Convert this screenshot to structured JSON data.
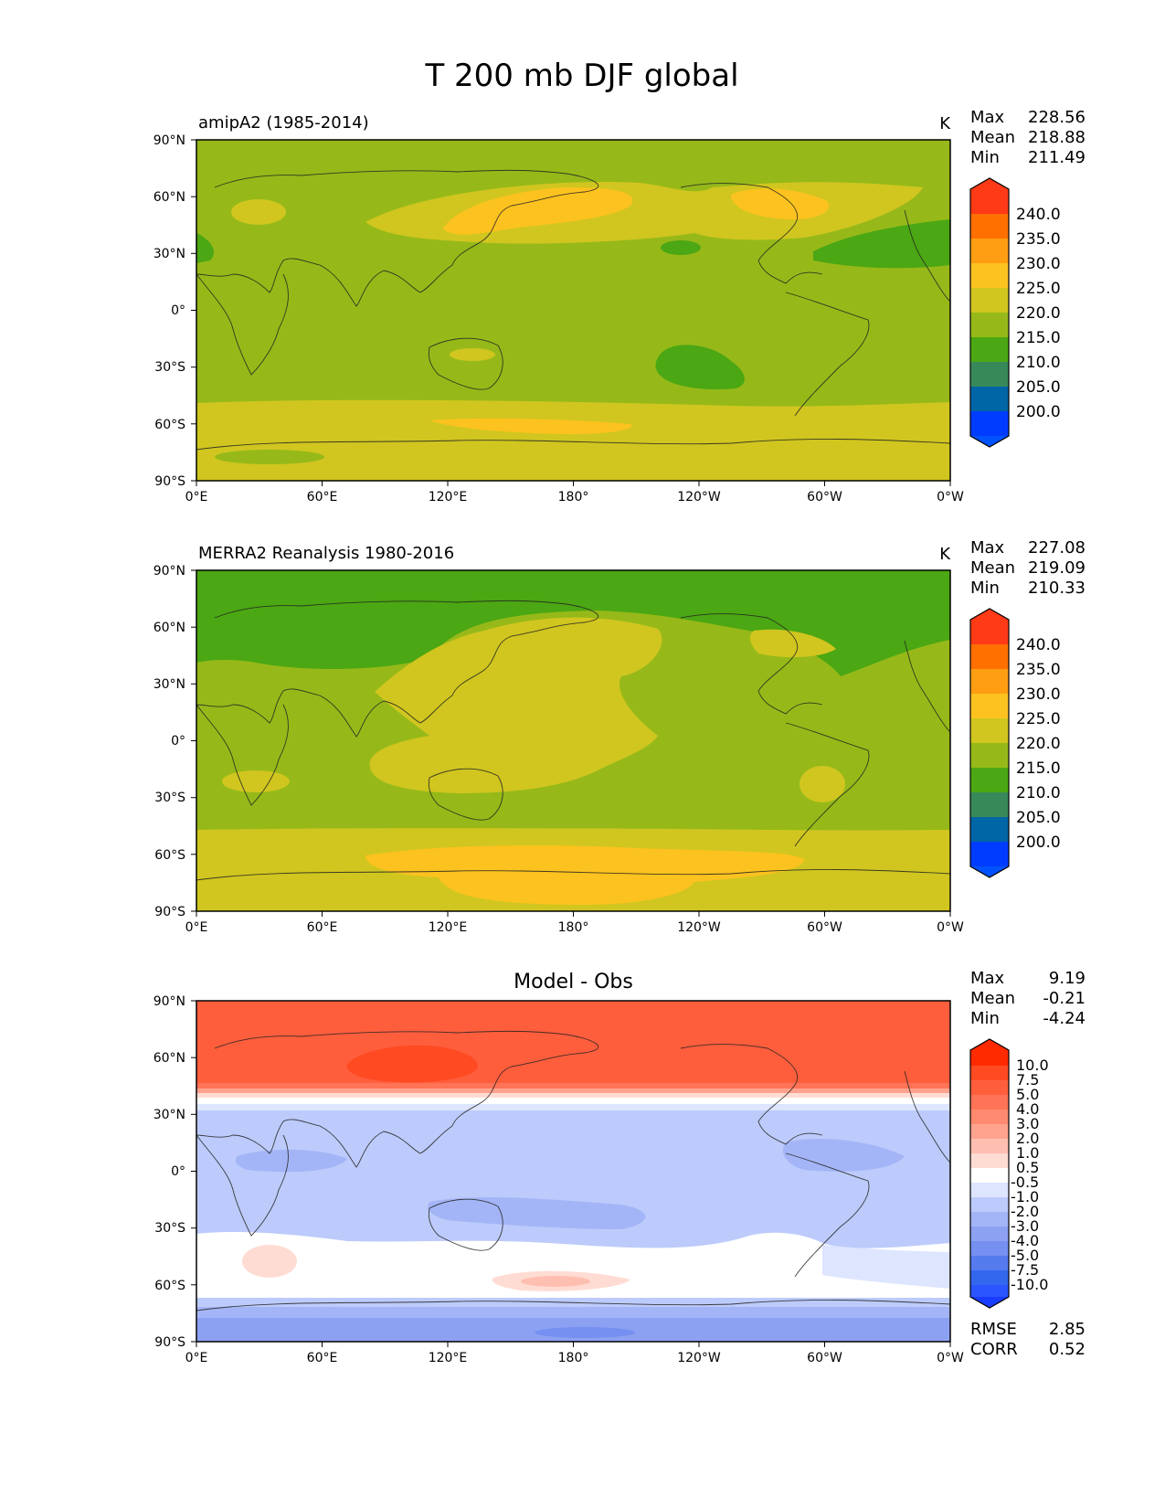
{
  "figure_title": "T 200 mb DJF global",
  "x_ticks": [
    "0°E",
    "60°E",
    "120°E",
    "180°",
    "120°W",
    "60°W",
    "0°W"
  ],
  "y_ticks": [
    "90°N",
    "60°N",
    "30°N",
    "0°",
    "30°S",
    "60°S",
    "90°S"
  ],
  "chart_data": [
    {
      "type": "heatmap",
      "name": "model",
      "title_left": "amipA2 (1985-2014)",
      "units": "K",
      "stats": [
        {
          "label": "Max",
          "value": "228.56"
        },
        {
          "label": "Mean",
          "value": "218.88"
        },
        {
          "label": "Min",
          "value": "211.49"
        }
      ],
      "colorbar": {
        "levels": [
          "240.0",
          "235.0",
          "230.0",
          "225.0",
          "220.0",
          "215.0",
          "210.0",
          "205.0",
          "200.0"
        ],
        "colors": [
          "#ff3a17",
          "#ff7000",
          "#ff9e12",
          "#fcc21f",
          "#d0c61f",
          "#96b919",
          "#4ba713",
          "#38895a",
          "#0066a5",
          "#003cff",
          "#0052ff"
        ]
      },
      "background_color": "#96b919",
      "regions": [
        {
          "band": "north subtropical warm",
          "value": "220-225",
          "color": "#d0c61f"
        },
        {
          "band": "north pacific jet",
          "value": "225-230",
          "color": "#fcc21f"
        },
        {
          "band": "north atlantic cool",
          "value": "210-215",
          "color": "#4ba713"
        },
        {
          "band": "south pacific cool",
          "value": "210-215",
          "color": "#4ba713"
        },
        {
          "band": "southern ocean warm",
          "value": "220-225",
          "color": "#d0c61f"
        },
        {
          "band": "southern ocean core",
          "value": "225-230",
          "color": "#fcc21f"
        },
        {
          "band": "antarctic cool",
          "value": "215-220",
          "color": "#96b919"
        }
      ],
      "xlim": [
        "0°E",
        "0°W"
      ],
      "ylim": [
        "90°S",
        "90°N"
      ]
    },
    {
      "type": "heatmap",
      "name": "obs",
      "title_left": "MERRA2 Reanalysis 1980-2016",
      "units": "K",
      "stats": [
        {
          "label": "Max",
          "value": "227.08"
        },
        {
          "label": "Mean",
          "value": "219.09"
        },
        {
          "label": "Min",
          "value": "210.33"
        }
      ],
      "colorbar": {
        "levels": [
          "240.0",
          "235.0",
          "230.0",
          "225.0",
          "220.0",
          "215.0",
          "210.0",
          "205.0",
          "200.0"
        ],
        "colors": [
          "#ff3a17",
          "#ff7000",
          "#ff9e12",
          "#fcc21f",
          "#d0c61f",
          "#96b919",
          "#4ba713",
          "#38895a",
          "#0066a5",
          "#003cff",
          "#0052ff"
        ]
      },
      "background_color": "#96b919",
      "regions": [
        {
          "band": "arctic cool",
          "value": "210-215",
          "color": "#4ba713"
        },
        {
          "band": "tropical pacific warm",
          "value": "220-225",
          "color": "#d0c61f"
        },
        {
          "band": "southern ocean warm",
          "value": "220-225",
          "color": "#d0c61f"
        },
        {
          "band": "southern ocean core",
          "value": "225-230",
          "color": "#fcc21f"
        }
      ],
      "xlim": [
        "0°E",
        "0°W"
      ],
      "ylim": [
        "90°S",
        "90°N"
      ]
    },
    {
      "type": "heatmap",
      "name": "difference",
      "title_center": "Model - Obs",
      "stats": [
        {
          "label": "Max",
          "value": "9.19"
        },
        {
          "label": "Mean",
          "value": "-0.21"
        },
        {
          "label": "Min",
          "value": "-4.24"
        }
      ],
      "metrics": [
        {
          "label": "RMSE",
          "value": "2.85"
        },
        {
          "label": "CORR",
          "value": "0.52"
        }
      ],
      "colorbar": {
        "levels": [
          "10.0",
          "7.5",
          "5.0",
          "4.0",
          "3.0",
          "2.0",
          "1.0",
          "0.5",
          "-0.5",
          "-1.0",
          "-2.0",
          "-3.0",
          "-4.0",
          "-5.0",
          "-7.5",
          "-10.0"
        ],
        "colors": [
          "#ff2a00",
          "#ff4a22",
          "#ff5e3d",
          "#ff7356",
          "#ff8a70",
          "#ffa38f",
          "#ffbfb0",
          "#ffdcd3",
          "#ffffff",
          "#dde5ff",
          "#bccbfb",
          "#a4b5f7",
          "#8da1f3",
          "#7590f0",
          "#567bef",
          "#3368ee",
          "#2a55ff",
          "#1a3cff"
        ]
      },
      "background_color": "#bccbfb",
      "regions": [
        {
          "band": "northern high latitudes",
          "value": "4.0 to 7.5",
          "color": "#ff5e3d"
        },
        {
          "band": "siberian max",
          "value": "7.5 to 10.0",
          "color": "#ff4a22"
        },
        {
          "band": "tropics",
          "value": "-2.0 to -1.0",
          "color": "#bccbfb"
        },
        {
          "band": "southern midlatitudes",
          "value": "-0.5 to 0.5",
          "color": "#ffffff"
        },
        {
          "band": "antarctic",
          "value": "-4.0 to -3.0",
          "color": "#8da1f3"
        }
      ],
      "xlim": [
        "0°E",
        "0°W"
      ],
      "ylim": [
        "90°S",
        "90°N"
      ]
    }
  ]
}
